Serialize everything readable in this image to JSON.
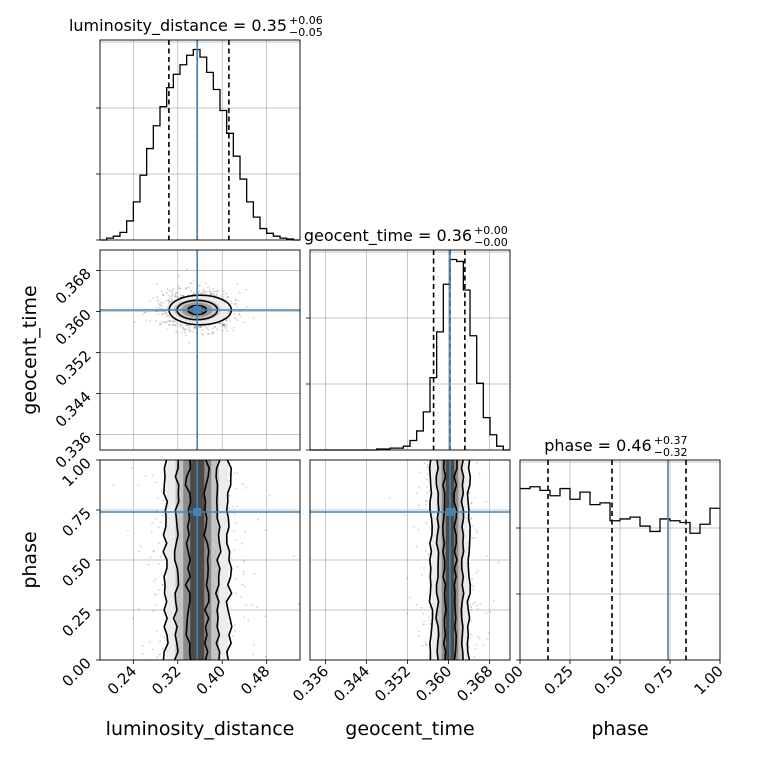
{
  "chart_data": {
    "type": "corner",
    "parameters": [
      "luminosity_distance",
      "geocent_time",
      "phase"
    ],
    "truths": {
      "luminosity_distance": 0.355,
      "geocent_time": 0.3603,
      "phase": 0.74
    },
    "grid": true,
    "panels": [
      {
        "id": "lum-hist",
        "type": "histogram",
        "title": "luminosity_distance = 0.35",
        "title_sup": "+0.06",
        "title_sub": "−0.05",
        "xlim": [
          0.18,
          0.54
        ],
        "ylim": [
          0,
          1.05
        ],
        "bin_edges": [
          0.18,
          0.192,
          0.204,
          0.216,
          0.228,
          0.24,
          0.252,
          0.264,
          0.276,
          0.288,
          0.3,
          0.312,
          0.324,
          0.336,
          0.348,
          0.36,
          0.372,
          0.384,
          0.396,
          0.408,
          0.42,
          0.432,
          0.444,
          0.456,
          0.468,
          0.48,
          0.492,
          0.504,
          0.516,
          0.528,
          0.54
        ],
        "counts": [
          0,
          0.01,
          0.02,
          0.04,
          0.1,
          0.2,
          0.34,
          0.48,
          0.6,
          0.7,
          0.8,
          0.87,
          0.92,
          0.97,
          1.0,
          0.96,
          0.88,
          0.79,
          0.68,
          0.56,
          0.44,
          0.32,
          0.2,
          0.12,
          0.06,
          0.035,
          0.02,
          0.01,
          0.005,
          0
        ],
        "quantiles": [
          0.304,
          0.355,
          0.412
        ]
      },
      {
        "id": "geo-hist",
        "type": "histogram",
        "title": "geocent_time = 0.36",
        "title_sup": "+0.00",
        "title_sub": "−0.00",
        "xlim": [
          0.333,
          0.372
        ],
        "ylim": [
          0,
          1.05
        ],
        "bin_edges": [
          0.333,
          0.3343,
          0.3356,
          0.3369,
          0.3382,
          0.3395,
          0.3408,
          0.3421,
          0.3434,
          0.3447,
          0.346,
          0.3473,
          0.3486,
          0.3499,
          0.3512,
          0.3525,
          0.3538,
          0.3551,
          0.3564,
          0.3577,
          0.359,
          0.3603,
          0.3616,
          0.3629,
          0.3642,
          0.3655,
          0.3668,
          0.3681,
          0.3694,
          0.3707,
          0.372
        ],
        "counts": [
          0,
          0,
          0,
          0,
          0,
          0,
          0,
          0,
          0,
          0,
          0.005,
          0.005,
          0.01,
          0.01,
          0.02,
          0.05,
          0.1,
          0.2,
          0.38,
          0.62,
          0.87,
          1.0,
          0.99,
          0.84,
          0.6,
          0.35,
          0.17,
          0.08,
          0.02,
          0.0
        ],
        "quantiles": [
          0.3571,
          0.3603,
          0.3632
        ]
      },
      {
        "id": "phase-hist",
        "type": "histogram",
        "title": "phase = 0.46",
        "title_sup": "+0.37",
        "title_sub": "−0.32",
        "xlim": [
          0,
          1
        ],
        "ylim": [
          0,
          1.12
        ],
        "bin_edges": [
          0,
          0.05,
          0.1,
          0.15,
          0.2,
          0.25,
          0.3,
          0.35,
          0.4,
          0.45,
          0.5,
          0.55,
          0.6,
          0.65,
          0.7,
          0.75,
          0.8,
          0.85,
          0.9,
          0.95,
          1.0
        ],
        "counts": [
          0.96,
          0.97,
          0.95,
          0.92,
          0.96,
          0.9,
          0.94,
          0.87,
          0.88,
          0.78,
          0.79,
          0.8,
          0.75,
          0.72,
          0.79,
          0.78,
          0.77,
          0.71,
          0.76,
          0.85
        ],
        "quantiles": [
          0.14,
          0.46,
          0.83
        ]
      },
      {
        "id": "lum-geo-2d",
        "type": "contour2d",
        "x": "luminosity_distance",
        "y": "geocent_time",
        "xlim": [
          0.18,
          0.54
        ],
        "ylim": [
          0.333,
          0.372
        ],
        "center": [
          0.355,
          0.3603
        ],
        "sigma": [
          0.028,
          0.0018
        ]
      },
      {
        "id": "lum-phase-2d",
        "type": "contour2d",
        "x": "luminosity_distance",
        "y": "phase",
        "xlim": [
          0.18,
          0.54
        ],
        "ylim": [
          0,
          1
        ],
        "center": [
          0.355,
          0.5
        ],
        "sigma": [
          0.028,
          0.5
        ]
      },
      {
        "id": "geo-phase-2d",
        "type": "contour2d",
        "x": "geocent_time",
        "y": "phase",
        "xlim": [
          0.333,
          0.372
        ],
        "ylim": [
          0,
          1
        ],
        "center": [
          0.3603,
          0.5
        ],
        "sigma": [
          0.0018,
          0.5
        ]
      }
    ],
    "axis_ticks": {
      "luminosity_distance": [
        0.24,
        0.32,
        0.4,
        0.48
      ],
      "geocent_time": [
        0.336,
        0.344,
        0.352,
        0.36,
        0.368
      ],
      "phase": [
        0.0,
        0.25,
        0.5,
        0.75,
        1.0
      ]
    },
    "tick_labels": {
      "luminosity_distance": [
        "0.24",
        "0.32",
        "0.40",
        "0.48"
      ],
      "geocent_time": [
        "0.336",
        "0.344",
        "0.352",
        "0.360",
        "0.368"
      ],
      "phase": [
        "0.00",
        "0.25",
        "0.50",
        "0.75",
        "1.00"
      ]
    },
    "xlabels": [
      "luminosity_distance",
      "geocent_time",
      "phase"
    ],
    "ylabels": [
      "geocent_time",
      "phase"
    ],
    "truth_color": "#4682b4",
    "hist_color": "#000000",
    "grid_color": "#b0b0b0"
  }
}
